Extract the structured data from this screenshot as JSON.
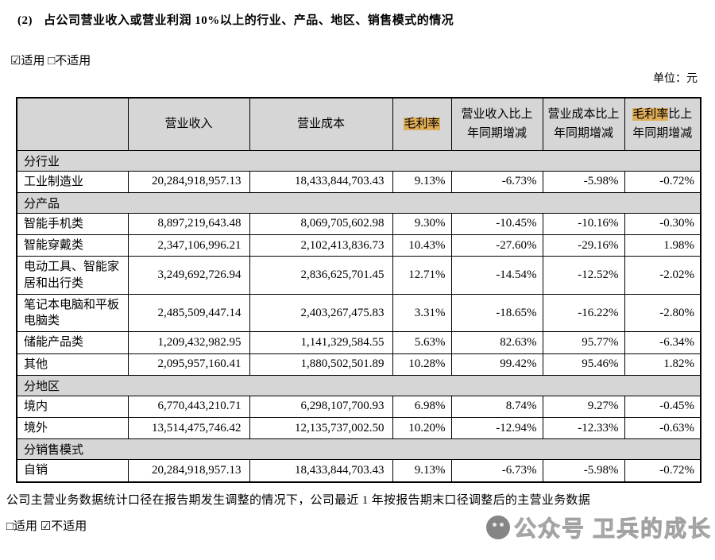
{
  "document": {
    "title_number": "(2)",
    "title_text": "占公司营业收入或营业利润 10%以上的行业、产品、地区、销售模式的情况",
    "applicable_top": "☑适用 □不适用",
    "unit_label": "单位：元",
    "note": "公司主营业务数据统计口径在报告期发生调整的情况下，公司最近 1 年按报告期末口径调整后的主营业务数据",
    "applicable_bottom": "□适用 ☑不适用",
    "watermark_text": "公众号 卫兵的成长"
  },
  "colors": {
    "header_bg": "#d6d6d6",
    "highlight": "#dfad58"
  },
  "table": {
    "columns": [
      {
        "label": "",
        "width": 140
      },
      {
        "label": "营业收入",
        "width": 153
      },
      {
        "label": "营业成本",
        "width": 180
      },
      {
        "label": "毛利率",
        "width": 74,
        "highlight": "毛利率"
      },
      {
        "label": "营业收入比上年同期增减",
        "width": 115
      },
      {
        "label": "营业成本比上年同期增减",
        "width": 103
      },
      {
        "label": "毛利率比上年同期增减",
        "width": 96,
        "highlight": "毛利率"
      }
    ],
    "rows": [
      {
        "type": "section",
        "label": "分行业"
      },
      {
        "type": "data",
        "label": "工业制造业",
        "values": [
          "20,284,918,957.13",
          "18,433,844,703.43",
          "9.13%",
          "-6.73%",
          "-5.98%",
          "-0.72%"
        ]
      },
      {
        "type": "section",
        "label": "分产品"
      },
      {
        "type": "data",
        "label": "智能手机类",
        "values": [
          "8,897,219,643.48",
          "8,069,705,602.98",
          "9.30%",
          "-10.45%",
          "-10.16%",
          "-0.30%"
        ]
      },
      {
        "type": "data",
        "label": "智能穿戴类",
        "values": [
          "2,347,106,996.21",
          "2,102,413,836.73",
          "10.43%",
          "-27.60%",
          "-29.16%",
          "1.98%"
        ]
      },
      {
        "type": "data",
        "label": "电动工具、智能家居和出行类",
        "values": [
          "3,249,692,726.94",
          "2,836,625,701.45",
          "12.71%",
          "-14.54%",
          "-12.52%",
          "-2.02%"
        ]
      },
      {
        "type": "data",
        "label": "笔记本电脑和平板电脑类",
        "values": [
          "2,485,509,447.14",
          "2,403,267,475.83",
          "3.31%",
          "-18.65%",
          "-16.22%",
          "-2.80%"
        ]
      },
      {
        "type": "data",
        "label": "储能产品类",
        "values": [
          "1,209,432,982.95",
          "1,141,329,584.55",
          "5.63%",
          "82.63%",
          "95.77%",
          "-6.34%"
        ]
      },
      {
        "type": "data",
        "label": "其他",
        "values": [
          "2,095,957,160.41",
          "1,880,502,501.89",
          "10.28%",
          "99.42%",
          "95.46%",
          "1.82%"
        ]
      },
      {
        "type": "section",
        "label": "分地区"
      },
      {
        "type": "data",
        "label": "境内",
        "values": [
          "6,770,443,210.71",
          "6,298,107,700.93",
          "6.98%",
          "8.74%",
          "9.27%",
          "-0.45%"
        ]
      },
      {
        "type": "data",
        "label": "境外",
        "values": [
          "13,514,475,746.42",
          "12,135,737,002.50",
          "10.20%",
          "-12.94%",
          "-12.33%",
          "-0.63%"
        ]
      },
      {
        "type": "section",
        "label": "分销售模式"
      },
      {
        "type": "data",
        "label": "自销",
        "values": [
          "20,284,918,957.13",
          "18,433,844,703.43",
          "9.13%",
          "-6.73%",
          "-5.98%",
          "-0.72%"
        ]
      }
    ]
  }
}
